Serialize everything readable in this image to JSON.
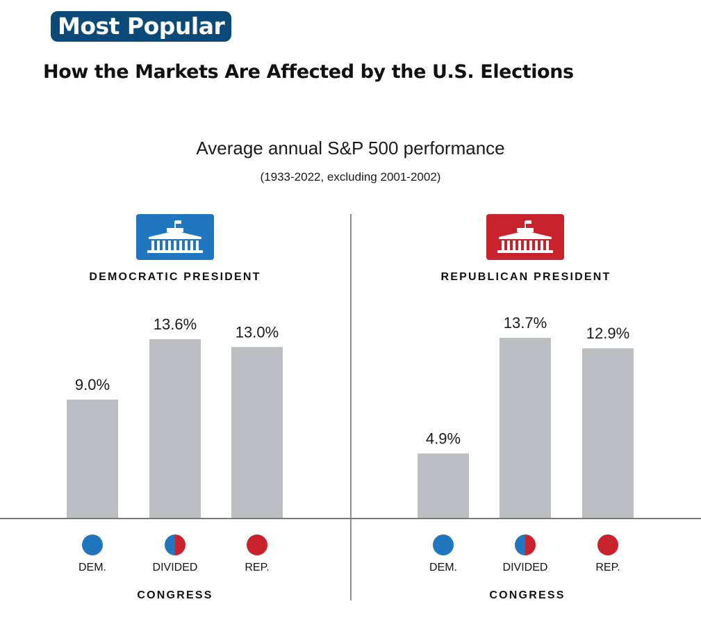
{
  "badge": "Most Popular",
  "headline": "How the Markets Are Affected by the U.S. Elections",
  "colors": {
    "badge": "#0b4a78",
    "democrat": "#2176c0",
    "republican": "#c8232c",
    "bar": "#bcbdc0"
  },
  "chart_data": {
    "type": "bar",
    "title": "Average annual S&P 500 performance",
    "subtitle": "(1933-2022, excluding 2001-2002)",
    "xlabel": "CONGRESS",
    "ylabel": "",
    "ylim": [
      0,
      15
    ],
    "categories": [
      "DEM.",
      "DIVIDED",
      "REP."
    ],
    "series": [
      {
        "name": "DEMOCRATIC PRESIDENT",
        "values": [
          9.0,
          13.6,
          13.0
        ],
        "labels": [
          "9.0%",
          "13.6%",
          "13.0%"
        ]
      },
      {
        "name": "REPUBLICAN PRESIDENT",
        "values": [
          4.9,
          13.7,
          12.9
        ],
        "labels": [
          "4.9%",
          "13.7%",
          "12.9%"
        ]
      }
    ],
    "icons": [
      "white-house-icon",
      "white-house-icon"
    ]
  }
}
